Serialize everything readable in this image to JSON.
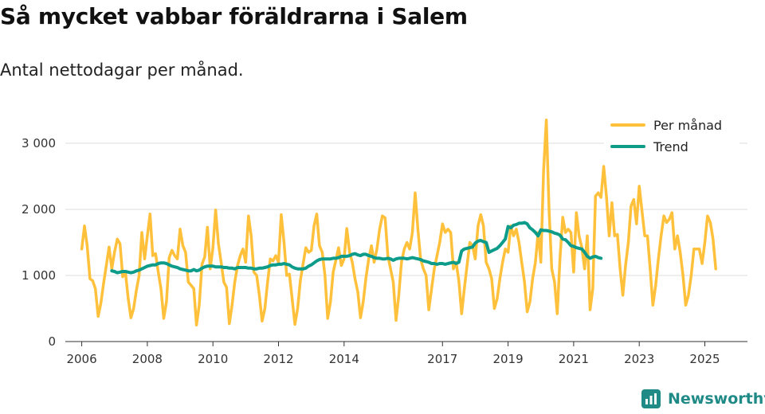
{
  "header": {
    "title": "Så mycket vabbar föräldrarna i Salem",
    "subtitle": "Antal nettodagar per månad."
  },
  "brand": {
    "name": "Newsworthy",
    "color": "#1f8a86"
  },
  "colors": {
    "monthly": "#FFC13B",
    "trend": "#0E9C8A",
    "grid": "#dddddd",
    "axis": "#333333"
  },
  "chart_data": {
    "type": "line",
    "title": "Så mycket vabbar föräldrarna i Salem",
    "subtitle": "Antal nettodagar per månad.",
    "xlabel": "",
    "ylabel": "",
    "xlim": [
      2005.5,
      2026.3
    ],
    "ylim": [
      0,
      3300
    ],
    "x_ticks": [
      2006,
      2008,
      2010,
      2012,
      2014,
      2017,
      2019,
      2021,
      2023,
      2025
    ],
    "x_tick_labels": [
      "2006",
      "2008",
      "2010",
      "2012",
      "2014",
      "2017",
      "2019",
      "2021",
      "2023",
      "2025"
    ],
    "y_ticks": [
      0,
      1000,
      2000,
      3000
    ],
    "y_tick_labels": [
      "0",
      "1 000",
      "2 000",
      "3 000"
    ],
    "grid": "horizontal",
    "legend_position": "top-right",
    "start_year": 2006,
    "series": [
      {
        "name": "Per månad",
        "values": [
          1400,
          1750,
          1450,
          950,
          920,
          800,
          380,
          580,
          880,
          1150,
          1430,
          1100,
          1350,
          1550,
          1480,
          980,
          1050,
          650,
          360,
          500,
          780,
          1000,
          1650,
          1250,
          1600,
          1930,
          1300,
          1330,
          1050,
          800,
          350,
          600,
          1270,
          1380,
          1300,
          1250,
          1700,
          1450,
          1350,
          900,
          850,
          800,
          250,
          550,
          1170,
          1280,
          1730,
          1100,
          1420,
          1990,
          1480,
          1200,
          900,
          820,
          270,
          550,
          900,
          1150,
          1300,
          1400,
          1200,
          1900,
          1600,
          1050,
          1000,
          700,
          310,
          500,
          900,
          1250,
          1220,
          1300,
          1200,
          1920,
          1500,
          1000,
          1020,
          650,
          260,
          500,
          920,
          1180,
          1420,
          1350,
          1380,
          1750,
          1930,
          1450,
          1350,
          1000,
          350,
          600,
          1050,
          1230,
          1420,
          1150,
          1250,
          1710,
          1350,
          1200,
          950,
          750,
          360,
          600,
          960,
          1250,
          1450,
          1200,
          1400,
          1700,
          1900,
          1870,
          1300,
          1100,
          900,
          320,
          700,
          1200,
          1400,
          1500,
          1400,
          1650,
          2250,
          1700,
          1250,
          1100,
          1000,
          480,
          800,
          1100,
          1300,
          1500,
          1780,
          1650,
          1700,
          1650,
          1100,
          1200,
          920,
          420,
          800,
          1150,
          1500,
          1450,
          1250,
          1750,
          1920,
          1750,
          1200,
          1100,
          950,
          500,
          650,
          950,
          1200,
          1400,
          1350,
          1750,
          1600,
          1700,
          1500,
          1200,
          900,
          450,
          600,
          950,
          1200,
          1650,
          1200,
          2600,
          3350,
          2000,
          1100,
          900,
          420,
          1250,
          1880,
          1650,
          1700,
          1650,
          1050,
          1950,
          1600,
          1420,
          1100,
          1600,
          480,
          800,
          2200,
          2250,
          2180,
          2650,
          2200,
          1600,
          2100,
          1600,
          1620,
          1100,
          700,
          1150,
          1500,
          2050,
          2150,
          1780,
          2350,
          1980,
          1600,
          1600,
          1100,
          550,
          850,
          1250,
          1600,
          1900,
          1800,
          1850,
          1950,
          1400,
          1600,
          1350,
          1000,
          550,
          700,
          1000,
          1400,
          1400,
          1400,
          1180,
          1500,
          1900,
          1800,
          1550,
          1100
        ]
      },
      {
        "name": "Trend",
        "start_index": 11,
        "values": [
          1070,
          1060,
          1040,
          1050,
          1060,
          1060,
          1050,
          1040,
          1050,
          1070,
          1080,
          1100,
          1120,
          1140,
          1150,
          1160,
          1160,
          1180,
          1190,
          1190,
          1180,
          1160,
          1140,
          1130,
          1120,
          1100,
          1090,
          1080,
          1070,
          1070,
          1090,
          1070,
          1080,
          1110,
          1130,
          1140,
          1140,
          1140,
          1130,
          1130,
          1130,
          1120,
          1120,
          1110,
          1110,
          1100,
          1120,
          1120,
          1120,
          1120,
          1110,
          1110,
          1100,
          1100,
          1110,
          1110,
          1120,
          1130,
          1150,
          1160,
          1160,
          1170,
          1170,
          1180,
          1170,
          1160,
          1130,
          1110,
          1100,
          1100,
          1100,
          1110,
          1140,
          1160,
          1190,
          1220,
          1240,
          1250,
          1250,
          1250,
          1250,
          1260,
          1260,
          1270,
          1290,
          1290,
          1290,
          1300,
          1320,
          1330,
          1310,
          1300,
          1320,
          1320,
          1300,
          1290,
          1270,
          1260,
          1260,
          1250,
          1250,
          1260,
          1250,
          1230,
          1250,
          1260,
          1260,
          1260,
          1250,
          1260,
          1270,
          1260,
          1250,
          1240,
          1220,
          1210,
          1200,
          1180,
          1180,
          1170,
          1180,
          1180,
          1170,
          1180,
          1190,
          1200,
          1180,
          1200,
          1370,
          1400,
          1410,
          1420,
          1430,
          1490,
          1520,
          1530,
          1510,
          1500,
          1350,
          1370,
          1390,
          1410,
          1450,
          1500,
          1550,
          1740,
          1720,
          1760,
          1770,
          1790,
          1790,
          1800,
          1780,
          1720,
          1690,
          1650,
          1600,
          1690,
          1680,
          1680,
          1670,
          1660,
          1640,
          1630,
          1610,
          1550,
          1540,
          1500,
          1450,
          1440,
          1420,
          1410,
          1400,
          1350,
          1290,
          1260,
          1280,
          1290,
          1270,
          1260
        ]
      }
    ]
  }
}
